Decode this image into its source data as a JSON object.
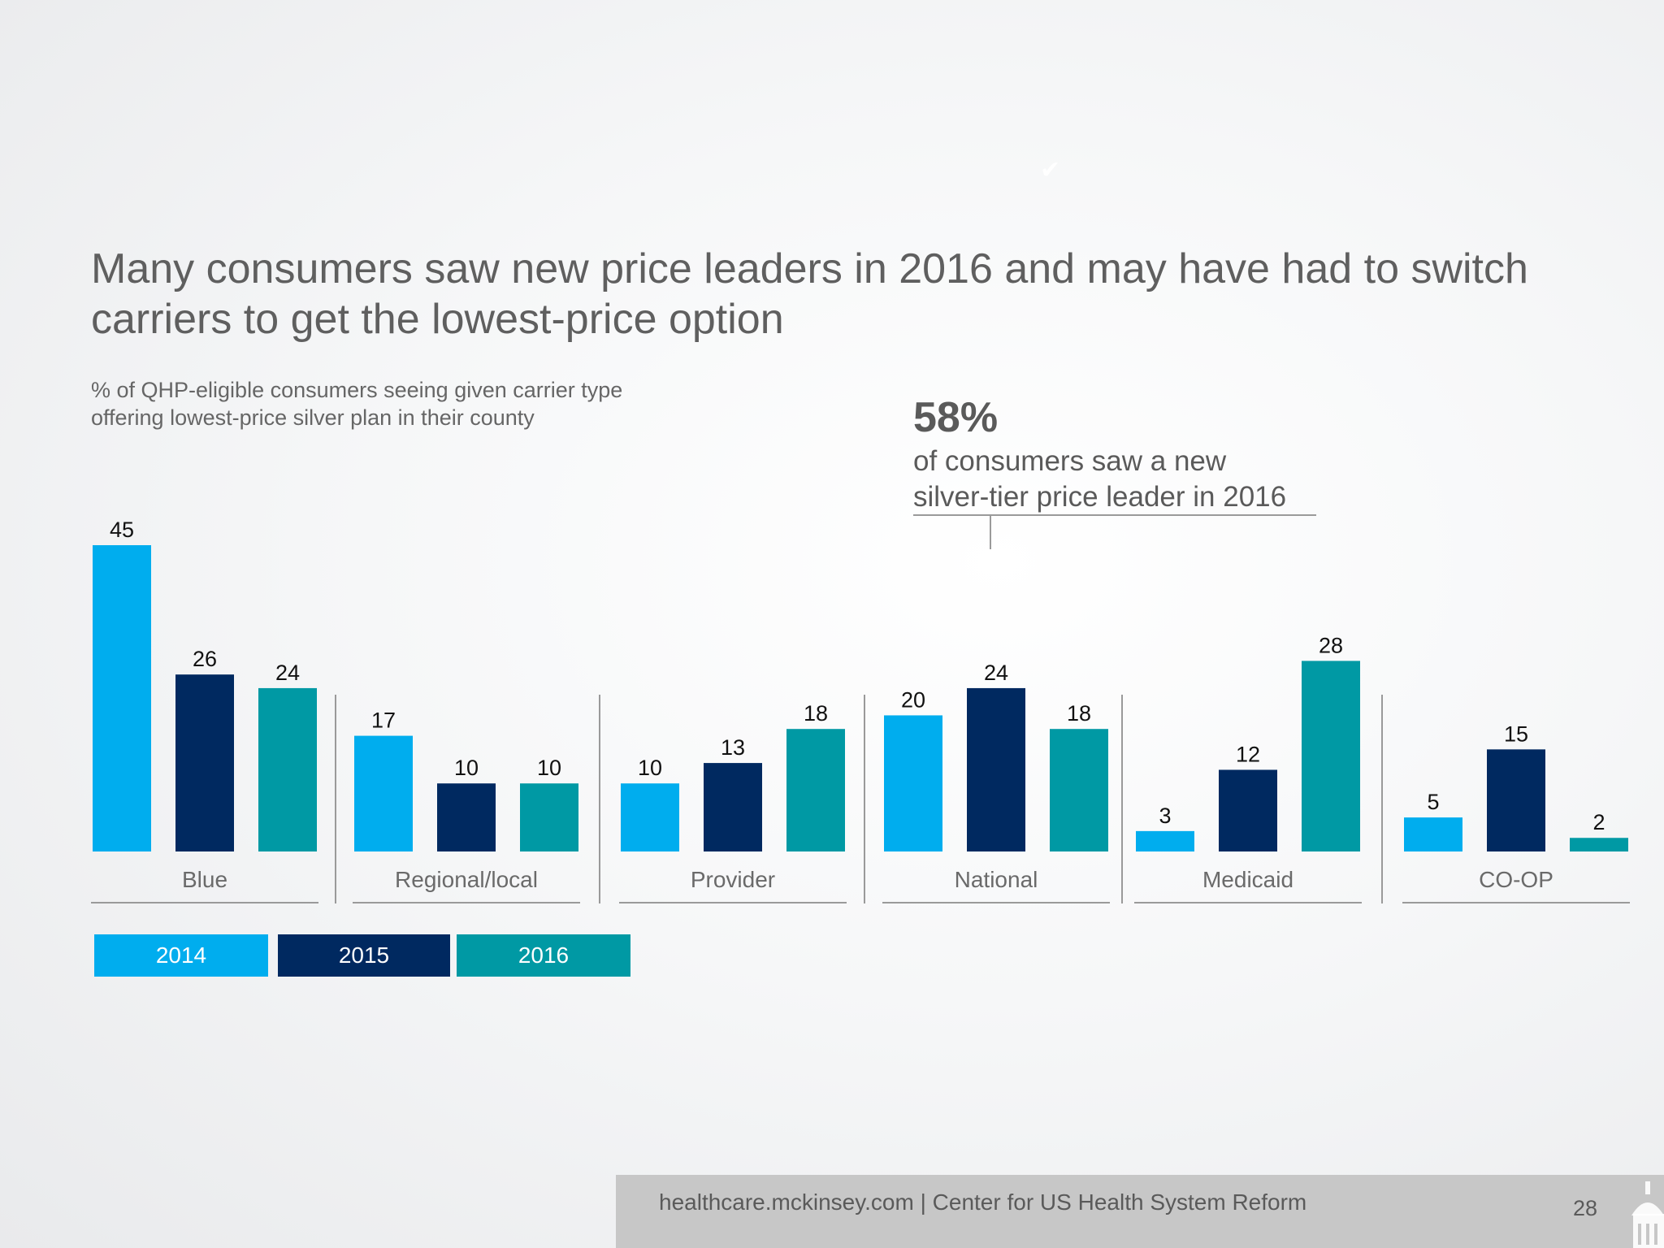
{
  "title": "Many consumers saw new price leaders in 2016 and may have had to switch carriers to get the lowest-price option",
  "subtitle_line1": "% of QHP-eligible consumers seeing given carrier type",
  "subtitle_line2": "offering lowest-price silver plan in their county",
  "callout": {
    "value": "58%",
    "line1": "of consumers saw a new",
    "line2": "silver-tier price leader in 2016"
  },
  "chart_data": {
    "type": "bar",
    "categories": [
      "Blue",
      "Regional/local",
      "Provider",
      "National",
      "Medicaid",
      "CO-OP"
    ],
    "series": [
      {
        "name": "2014",
        "color": "#00adee",
        "values": [
          45,
          17,
          10,
          20,
          3,
          5
        ]
      },
      {
        "name": "2015",
        "color": "#002960",
        "values": [
          26,
          10,
          13,
          24,
          12,
          15
        ]
      },
      {
        "name": "2016",
        "color": "#0099a4",
        "values": [
          24,
          10,
          18,
          18,
          28,
          2
        ]
      }
    ],
    "title": "",
    "xlabel": "",
    "ylabel": "",
    "ylim": [
      0,
      45
    ],
    "grid": false,
    "legend_position": "bottom-left"
  },
  "footer": {
    "text": "healthcare.mckinsey.com | Center for US Health System Reform",
    "page_number": "28"
  }
}
